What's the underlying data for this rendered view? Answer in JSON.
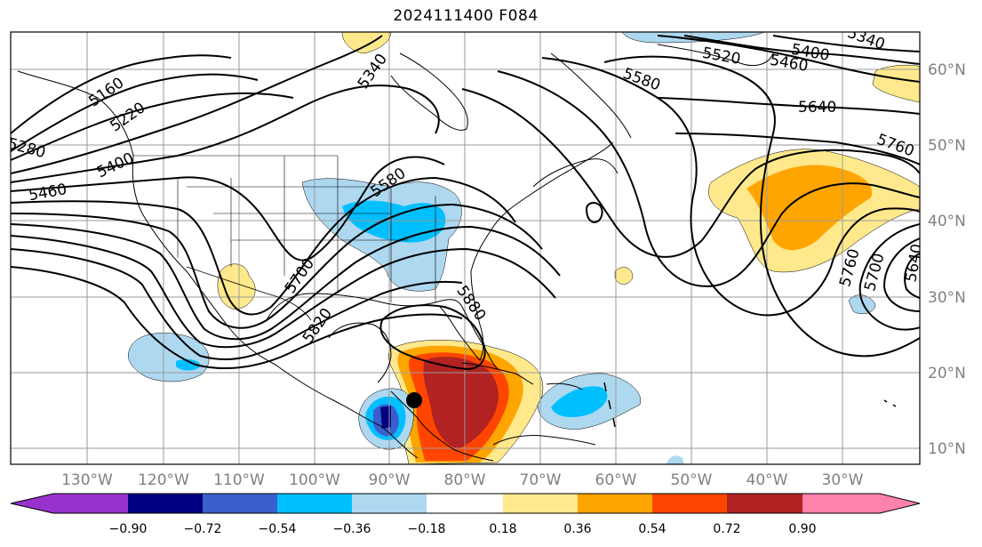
{
  "title": "2024111400 F084",
  "map": {
    "lon_labels": [
      "130°W",
      "120°W",
      "110°W",
      "100°W",
      "90°W",
      "80°W",
      "70°W",
      "60°W",
      "50°W",
      "40°W",
      "30°W"
    ],
    "lat_labels": [
      "60°N",
      "50°N",
      "40°N",
      "30°N",
      "20°N",
      "10°N"
    ],
    "contour_labels": [
      "5160",
      "5220",
      "5280",
      "5400",
      "5460",
      "5340",
      "5580",
      "5700",
      "5820",
      "5880",
      "5520",
      "5400",
      "5460",
      "5340",
      "5580",
      "5640",
      "5760",
      "5760",
      "5700",
      "5640"
    ],
    "marker": "storm-center-dot"
  },
  "colorbar": {
    "ticks": [
      "−0.90",
      "−0.72",
      "−0.54",
      "−0.36",
      "−0.18",
      "0.18",
      "0.36",
      "0.54",
      "0.72",
      "0.90"
    ],
    "colors": [
      "#9932cc",
      "#000080",
      "#3a5fcd",
      "#00bfff",
      "#add8f0",
      "#ffffff",
      "#ffe98c",
      "#ffa500",
      "#ff4500",
      "#b22222",
      "#ff82ab"
    ]
  }
}
